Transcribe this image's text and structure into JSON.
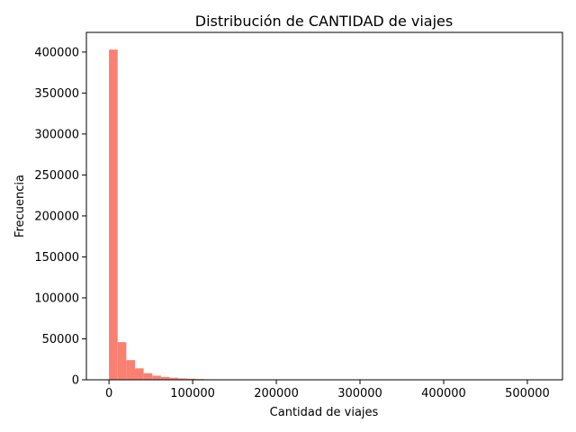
{
  "chart_data": {
    "type": "bar",
    "title": "Distribución de CANTIDAD de viajes",
    "xlabel": "Cantidad de viajes",
    "ylabel": "Frecuencia",
    "bar_color": "#fa8072",
    "xlim": [
      -27000,
      542000
    ],
    "ylim": [
      0,
      424000
    ],
    "bin_start": 0,
    "bin_width": 10360,
    "counts": [
      403000,
      46000,
      24000,
      14000,
      8000,
      5000,
      3500,
      2500,
      1700,
      1300,
      900,
      600,
      400,
      250,
      180,
      120,
      80,
      60,
      40,
      30,
      25,
      20,
      15,
      12,
      10,
      8,
      6,
      5,
      4,
      3,
      3,
      2,
      2,
      2,
      1,
      1,
      1,
      1,
      1,
      1,
      1,
      1,
      1,
      1,
      1,
      1,
      1,
      1,
      1,
      1
    ],
    "xticks": [
      0,
      100000,
      200000,
      300000,
      400000,
      500000
    ],
    "xtick_labels": [
      "0",
      "100000",
      "200000",
      "300000",
      "400000",
      "500000"
    ],
    "yticks": [
      0,
      50000,
      100000,
      150000,
      200000,
      250000,
      300000,
      350000,
      400000
    ],
    "ytick_labels": [
      "0",
      "50000",
      "100000",
      "150000",
      "200000",
      "250000",
      "300000",
      "350000",
      "400000"
    ],
    "grid": false,
    "legend": "none"
  }
}
